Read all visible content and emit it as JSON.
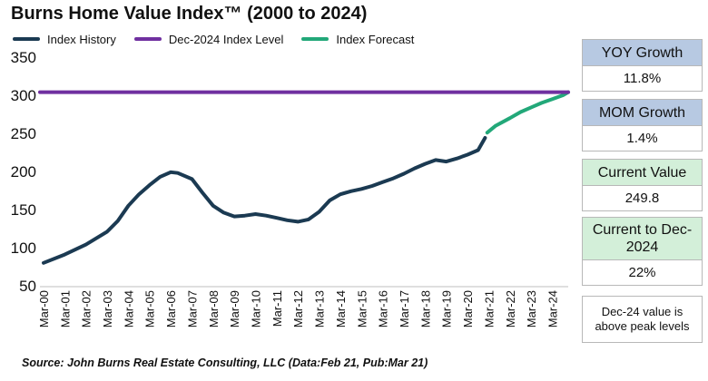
{
  "title": "Burns Home Value Index™ (2000 to 2024)",
  "source": "Source: John Burns Real Estate Consulting, LLC (Data:Feb 21, Pub:Mar 21)",
  "colors": {
    "history": "#1b3a52",
    "peak": "#7030a0",
    "forecast": "#22a879"
  },
  "legend": [
    {
      "label": "Index History",
      "color": "#1b3a52"
    },
    {
      "label": "Dec-2024 Index Level",
      "color": "#7030a0"
    },
    {
      "label": "Index Forecast",
      "color": "#22a879"
    }
  ],
  "panel": {
    "yoy": {
      "label": "YOY Growth",
      "value": "11.8%"
    },
    "mom": {
      "label": "MOM Growth",
      "value": "1.4%"
    },
    "current": {
      "label": "Current Value",
      "value": "249.8"
    },
    "to_dec": {
      "label": "Current to Dec-2024",
      "value": "22%"
    },
    "note": "Dec-24 value is above peak levels"
  },
  "chart_data": {
    "type": "line",
    "ylim": [
      50,
      350
    ],
    "yticks": [
      50,
      100,
      150,
      200,
      250,
      300,
      350
    ],
    "grid": false,
    "legend_position": "top-left",
    "xticks": [
      "Mar-00",
      "Mar-01",
      "Mar-02",
      "Mar-03",
      "Mar-04",
      "Mar-05",
      "Mar-06",
      "Mar-07",
      "Mar-08",
      "Mar-09",
      "Mar-10",
      "Mar-11",
      "Mar-12",
      "Mar-13",
      "Mar-14",
      "Mar-15",
      "Mar-16",
      "Mar-17",
      "Mar-18",
      "Mar-19",
      "Mar-20",
      "Mar-21",
      "Mar-22",
      "Mar-23",
      "Mar-24"
    ],
    "series": [
      {
        "name": "Index History",
        "x": [
          2000.17,
          2001.17,
          2002.17,
          2003.17,
          2003.67,
          2004.17,
          2004.67,
          2005.17,
          2005.67,
          2006.17,
          2006.5,
          2007.17,
          2007.67,
          2008.17,
          2008.67,
          2009.17,
          2009.67,
          2010.17,
          2010.67,
          2011.17,
          2011.67,
          2012.17,
          2012.67,
          2013.17,
          2013.67,
          2014.17,
          2014.67,
          2015.17,
          2015.67,
          2016.17,
          2016.67,
          2017.17,
          2017.67,
          2018.17,
          2018.67,
          2019.17,
          2019.67,
          2020.17,
          2020.67,
          2021.0
        ],
        "y": [
          80,
          91,
          104,
          121,
          135,
          155,
          170,
          182,
          193,
          199,
          198,
          190,
          172,
          155,
          146,
          141,
          142,
          144,
          142,
          139,
          136,
          134,
          137,
          147,
          162,
          170,
          174,
          177,
          181,
          186,
          191,
          197,
          204,
          210,
          215,
          213,
          217,
          222,
          228,
          244
        ]
      },
      {
        "name": "Index Forecast",
        "x": [
          2021.1,
          2021.5,
          2022.17,
          2022.67,
          2023.17,
          2023.67,
          2024.17,
          2024.67,
          2024.92
        ],
        "y": [
          251,
          260,
          270,
          278,
          284,
          290,
          295,
          300,
          304
        ]
      },
      {
        "name": "Dec-2024 Index Level",
        "x": [
          2000.0,
          2024.92
        ],
        "y": [
          304,
          304
        ]
      }
    ]
  }
}
